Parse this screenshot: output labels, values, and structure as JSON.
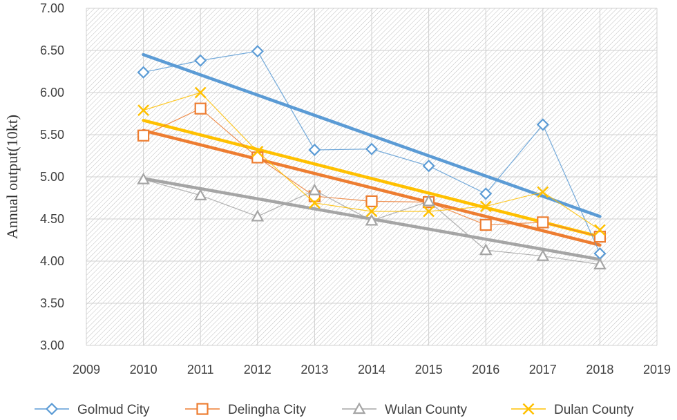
{
  "chart_data": {
    "type": "scatter",
    "title": "",
    "xlabel": "",
    "ylabel": "Annual output(10kt)",
    "xlim": [
      2009,
      2019
    ],
    "ylim": [
      3.0,
      7.0
    ],
    "xticks": [
      "2009",
      "2010",
      "2011",
      "2012",
      "2013",
      "2014",
      "2015",
      "2016",
      "2017",
      "2018",
      "2019"
    ],
    "yticks": [
      "3.00",
      "3.50",
      "4.00",
      "4.50",
      "5.00",
      "5.50",
      "6.00",
      "6.50",
      "7.00"
    ],
    "x": [
      2010,
      2011,
      2012,
      2013,
      2014,
      2015,
      2016,
      2017,
      2018
    ],
    "legend_position": "bottom",
    "series": [
      {
        "name": "Golmud City",
        "color": "#5B9BD5",
        "marker": "diamond",
        "values": [
          6.24,
          6.38,
          6.49,
          5.32,
          5.33,
          5.13,
          4.8,
          5.62,
          4.09
        ],
        "trend": [
          6.45,
          4.53
        ]
      },
      {
        "name": "Delingha City",
        "color": "#ED7D31",
        "marker": "square",
        "values": [
          5.49,
          5.81,
          5.23,
          4.77,
          4.71,
          4.7,
          4.43,
          4.46,
          4.29
        ],
        "trend": [
          5.55,
          4.19
        ]
      },
      {
        "name": "Wulan County",
        "color": "#A5A5A5",
        "marker": "triangle",
        "values": [
          4.97,
          4.78,
          4.53,
          4.84,
          4.48,
          4.71,
          4.13,
          4.06,
          3.96
        ],
        "trend": [
          4.98,
          4.02
        ]
      },
      {
        "name": "Dulan County",
        "color": "#FFC000",
        "marker": "x",
        "values": [
          5.79,
          6.0,
          5.3,
          4.69,
          4.59,
          4.59,
          4.65,
          4.82,
          4.37
        ],
        "trend": [
          5.67,
          4.29
        ]
      }
    ]
  }
}
